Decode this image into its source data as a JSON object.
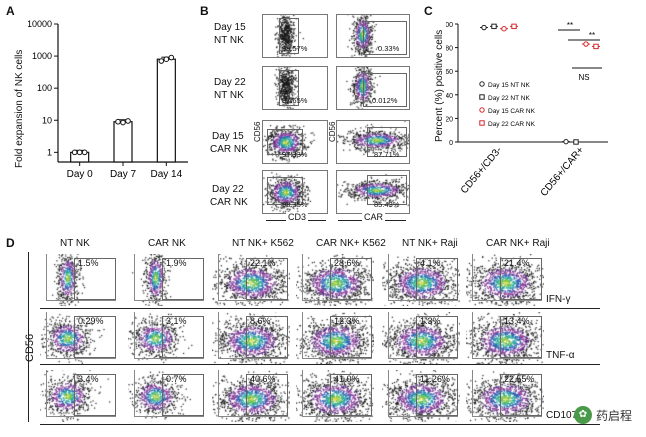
{
  "panel_a": {
    "label": "A",
    "ylabel": "Fold expansion of NK cells",
    "yticks": [
      "1",
      "10",
      "100",
      "1000",
      "10000"
    ],
    "chart_data": {
      "type": "bar",
      "categories": [
        "Day 0",
        "Day 7",
        "Day 14"
      ],
      "values": [
        1,
        9,
        800
      ],
      "replicates": [
        [
          1,
          1,
          1
        ],
        [
          9,
          8.5,
          9.5
        ],
        [
          700,
          800,
          900
        ]
      ],
      "yscale": "log",
      "ylim": [
        0.5,
        10000
      ],
      "ylabel": "Fold expansion of NK cells"
    }
  },
  "panel_b": {
    "label": "B",
    "rows": [
      {
        "label1": "Day 15",
        "label2": "NT NK",
        "left_pct": "98.57%",
        "right_pct": "0.33%"
      },
      {
        "label1": "Day 22",
        "label2": "NT NK",
        "left_pct": "97.65%",
        "right_pct": "0.012%"
      },
      {
        "label1": "Day 15",
        "label2": "CAR NK",
        "left_pct": "97.33%",
        "right_pct": "87.71%"
      },
      {
        "label1": "Day 22",
        "label2": "CAR NK",
        "left_pct": "98.35%",
        "right_pct": "85.43%"
      }
    ],
    "y_axis_left": "CD56",
    "y_axis_right": "CD56",
    "x_axis_left": "CD3",
    "x_axis_right": "CAR"
  },
  "panel_c": {
    "label": "C",
    "ylabel": "Percent (%) positive cells",
    "yticks": [
      "0",
      "20",
      "40",
      "60",
      "80",
      "100"
    ],
    "categories": [
      "CD56+/CD3-",
      "CD56+/CAR+"
    ],
    "legend": [
      "Day 15 NT NK",
      "Day 22 NT NK",
      "Day 15 CAR NK",
      "Day 22 CAR NK"
    ],
    "sig1": "**",
    "sig2": "**",
    "sig3": "NS",
    "colors": {
      "nt": "#222222",
      "car": "#d6262b"
    },
    "chart_data": {
      "type": "scatter",
      "categories": [
        "CD56+/CD3-",
        "CD56+/CAR+"
      ],
      "ylim": [
        0,
        100
      ],
      "ylabel": "Percent (%) positive cells",
      "series": [
        {
          "name": "Day 15 NT NK",
          "values": [
            97,
            0.3
          ]
        },
        {
          "name": "Day 22 NT NK",
          "values": [
            98,
            0.01
          ]
        },
        {
          "name": "Day 15 CAR NK",
          "values": [
            96,
            83
          ]
        },
        {
          "name": "Day 22 CAR NK",
          "values": [
            98,
            81
          ]
        }
      ]
    }
  },
  "panel_d": {
    "label": "D",
    "columns": [
      "NT NK",
      "CAR NK",
      "NT NK+ K562",
      "CAR NK+ K562",
      "NT NK+ Raji",
      "CAR NK+ Raji"
    ],
    "rows": [
      {
        "marker": "IFN-γ",
        "pcts": [
          "1.5%",
          "1.9%",
          "22.1%",
          "28.6%",
          "4.1%",
          "21.4%"
        ]
      },
      {
        "marker": "TNF-α",
        "pcts": [
          "0.29%",
          "3.1%",
          "8.6%",
          "12.3%",
          "1.3%",
          "13.4%"
        ]
      },
      {
        "marker": "CD107a",
        "pcts": [
          "3.4%",
          "0.7%",
          "40.6%",
          "41.0%",
          "11.26%",
          "22.55%"
        ]
      }
    ],
    "y_axis": "CD56"
  },
  "watermark": "药启程"
}
